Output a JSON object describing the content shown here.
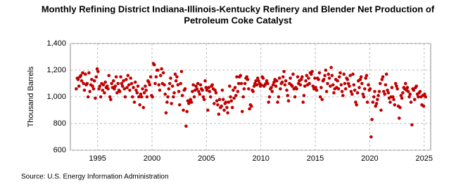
{
  "chart_data": {
    "type": "scatter",
    "title": [
      "Monthly Refining District Indiana-Illinois-Kentucky Refinery and Blender Net Production of",
      "Petroleum Coke Catalyst"
    ],
    "y_label": "Thousand Barrels",
    "source": "Source: U.S. Energy Information Administration",
    "xlim": [
      1992.5,
      2025.6
    ],
    "xticks": [
      1995,
      2000,
      2005,
      2010,
      2015,
      2020,
      2025
    ],
    "ylim": [
      600,
      1400
    ],
    "yticks": [
      600,
      800,
      {
        "value": 1000,
        "label": "1,000"
      },
      {
        "value": 1200,
        "label": "1,200"
      },
      {
        "value": 1400,
        "label": "1,400"
      }
    ],
    "grid": true,
    "color": "#c00000",
    "x": [
      1993.04,
      1993.13,
      1993.21,
      1993.29,
      1993.38,
      1993.46,
      1993.54,
      1993.63,
      1993.71,
      1993.79,
      1993.88,
      1993.96,
      1994.04,
      1994.13,
      1994.21,
      1994.29,
      1994.38,
      1994.46,
      1994.54,
      1994.63,
      1994.71,
      1994.79,
      1994.88,
      1994.96,
      1995.04,
      1995.13,
      1995.21,
      1995.29,
      1995.38,
      1995.46,
      1995.54,
      1995.63,
      1995.71,
      1995.79,
      1995.88,
      1995.96,
      1996.04,
      1996.13,
      1996.21,
      1996.29,
      1996.38,
      1996.46,
      1996.54,
      1996.63,
      1996.71,
      1996.79,
      1996.88,
      1996.96,
      1997.04,
      1997.13,
      1997.21,
      1997.29,
      1997.38,
      1997.46,
      1997.54,
      1997.63,
      1997.71,
      1997.79,
      1997.88,
      1997.96,
      1998.04,
      1998.13,
      1998.21,
      1998.29,
      1998.38,
      1998.46,
      1998.54,
      1998.63,
      1998.71,
      1998.79,
      1998.88,
      1998.96,
      1999.04,
      1999.13,
      1999.21,
      1999.29,
      1999.38,
      1999.46,
      1999.54,
      1999.63,
      1999.71,
      1999.79,
      1999.88,
      1999.96,
      2000.04,
      2000.13,
      2000.21,
      2000.29,
      2000.38,
      2000.46,
      2000.54,
      2000.63,
      2000.71,
      2000.79,
      2000.88,
      2000.96,
      2001.04,
      2001.13,
      2001.21,
      2001.29,
      2001.38,
      2001.46,
      2001.54,
      2001.63,
      2001.71,
      2001.79,
      2001.88,
      2001.96,
      2002.04,
      2002.13,
      2002.21,
      2002.29,
      2002.38,
      2002.46,
      2002.54,
      2002.63,
      2002.71,
      2002.79,
      2002.88,
      2002.96,
      2003.04,
      2003.13,
      2003.21,
      2003.29,
      2003.38,
      2003.46,
      2003.54,
      2003.63,
      2003.71,
      2003.79,
      2003.88,
      2003.96,
      2004.04,
      2004.13,
      2004.21,
      2004.29,
      2004.38,
      2004.46,
      2004.54,
      2004.63,
      2004.71,
      2004.79,
      2004.88,
      2004.96,
      2005.04,
      2005.13,
      2005.21,
      2005.29,
      2005.38,
      2005.46,
      2005.54,
      2005.63,
      2005.71,
      2005.79,
      2005.88,
      2005.96,
      2006.04,
      2006.13,
      2006.21,
      2006.29,
      2006.38,
      2006.46,
      2006.54,
      2006.63,
      2006.71,
      2006.79,
      2006.88,
      2006.96,
      2007.04,
      2007.13,
      2007.21,
      2007.29,
      2007.38,
      2007.46,
      2007.54,
      2007.63,
      2007.71,
      2007.79,
      2007.88,
      2007.96,
      2008.04,
      2008.13,
      2008.21,
      2008.29,
      2008.38,
      2008.46,
      2008.54,
      2008.63,
      2008.71,
      2008.79,
      2008.88,
      2008.96,
      2009.04,
      2009.13,
      2009.21,
      2009.29,
      2009.38,
      2009.46,
      2009.54,
      2009.63,
      2009.71,
      2009.79,
      2009.88,
      2009.96,
      2010.04,
      2010.13,
      2010.21,
      2010.29,
      2010.38,
      2010.46,
      2010.54,
      2010.63,
      2010.71,
      2010.79,
      2010.88,
      2010.96,
      2011.04,
      2011.13,
      2011.21,
      2011.29,
      2011.38,
      2011.46,
      2011.54,
      2011.63,
      2011.71,
      2011.79,
      2011.88,
      2011.96,
      2012.04,
      2012.13,
      2012.21,
      2012.29,
      2012.38,
      2012.46,
      2012.54,
      2012.63,
      2012.71,
      2012.79,
      2012.88,
      2012.96,
      2013.04,
      2013.13,
      2013.21,
      2013.29,
      2013.38,
      2013.46,
      2013.54,
      2013.63,
      2013.71,
      2013.79,
      2013.88,
      2013.96,
      2014.04,
      2014.13,
      2014.21,
      2014.29,
      2014.38,
      2014.46,
      2014.54,
      2014.63,
      2014.71,
      2014.79,
      2014.88,
      2014.96,
      2015.04,
      2015.13,
      2015.21,
      2015.29,
      2015.38,
      2015.46,
      2015.54,
      2015.63,
      2015.71,
      2015.79,
      2015.88,
      2015.96,
      2016.04,
      2016.13,
      2016.21,
      2016.29,
      2016.38,
      2016.46,
      2016.54,
      2016.63,
      2016.71,
      2016.79,
      2016.88,
      2016.96,
      2017.04,
      2017.13,
      2017.21,
      2017.29,
      2017.38,
      2017.46,
      2017.54,
      2017.63,
      2017.71,
      2017.79,
      2017.88,
      2017.96,
      2018.04,
      2018.13,
      2018.21,
      2018.29,
      2018.38,
      2018.46,
      2018.54,
      2018.63,
      2018.71,
      2018.79,
      2018.88,
      2018.96,
      2019.04,
      2019.13,
      2019.21,
      2019.29,
      2019.38,
      2019.46,
      2019.54,
      2019.63,
      2019.71,
      2019.79,
      2019.88,
      2019.96,
      2020.04,
      2020.13,
      2020.21,
      2020.29,
      2020.38,
      2020.46,
      2020.54,
      2020.63,
      2020.71,
      2020.79,
      2020.88,
      2020.96,
      2021.04,
      2021.13,
      2021.21,
      2021.29,
      2021.38,
      2021.46,
      2021.54,
      2021.63,
      2021.71,
      2021.79,
      2021.88,
      2021.96,
      2022.04,
      2022.13,
      2022.21,
      2022.29,
      2022.38,
      2022.46,
      2022.54,
      2022.63,
      2022.71,
      2022.79,
      2022.88,
      2022.96,
      2023.04,
      2023.13,
      2023.21,
      2023.29,
      2023.38,
      2023.46,
      2023.54,
      2023.63,
      2023.71,
      2023.79,
      2023.88,
      2023.96,
      2024.04,
      2024.13,
      2024.21,
      2024.29,
      2024.38,
      2024.46,
      2024.54,
      2024.63,
      2024.71,
      2024.79,
      2024.88,
      2024.96,
      2025.04,
      2025.13
    ],
    "values": [
      1060,
      1140,
      1130,
      1080,
      1150,
      1160,
      1120,
      1180,
      1100,
      1050,
      1170,
      1090,
      1100,
      1000,
      1180,
      1040,
      1090,
      1130,
      1080,
      1060,
      1120,
      990,
      1150,
      1210,
      1190,
      1060,
      1080,
      1000,
      1100,
      1050,
      1090,
      1030,
      1110,
      1070,
      1080,
      1060,
      1160,
      1000,
      980,
      1100,
      1070,
      1120,
      1060,
      1080,
      1150,
      1030,
      1100,
      1050,
      1040,
      1150,
      1100,
      1080,
      1120,
      1060,
      1000,
      1130,
      1070,
      1160,
      1090,
      1050,
      1140,
      1100,
      1000,
      1070,
      960,
      1110,
      1050,
      1030,
      1080,
      1000,
      940,
      1020,
      1000,
      1060,
      920,
      1030,
      1080,
      1050,
      1000,
      1120,
      1110,
      1090,
      1150,
      1010,
      1000,
      1250,
      1240,
      1100,
      1150,
      1200,
      1200,
      1090,
      1050,
      1160,
      1210,
      1100,
      1180,
      1090,
      1020,
      880,
      960,
      1000,
      1060,
      1100,
      1140,
      950,
      1080,
      1000,
      1030,
      1170,
      1120,
      1150,
      1090,
      1040,
      940,
      1100,
      1190,
      1010,
      900,
      1050,
      1060,
      780,
      890,
      970,
      950,
      960,
      980,
      960,
      1040,
      1090,
      1000,
      1050,
      1080,
      1060,
      1100,
      1040,
      1020,
      1090,
      1060,
      1050,
      1000,
      980,
      1120,
      1070,
      1050,
      900,
      1070,
      1040,
      1000,
      1080,
      1090,
      1060,
      950,
      1050,
      1030,
      970,
      940,
      870,
      980,
      920,
      930,
      1050,
      980,
      900,
      950,
      960,
      920,
      880,
      960,
      1080,
      1000,
      970,
      920,
      1050,
      990,
      1070,
      1010,
      1150,
      1040,
      1100,
      1150,
      1160,
      1100,
      890,
      1000,
      1060,
      1100,
      1140,
      1150,
      1130,
      1060,
      910,
      940,
      930,
      1050,
      1040,
      1080,
      1100,
      1120,
      1090,
      1140,
      1120,
      1100,
      1080,
      1090,
      1150,
      1140,
      1080,
      1090,
      1100,
      1120,
      1100,
      960,
      1000,
      1060,
      1070,
      1040,
      1090,
      1110,
      1130,
      1080,
      1120,
      960,
      1000,
      1140,
      1060,
      1100,
      1110,
      1150,
      1190,
      1090,
      1120,
      1050,
      1010,
      970,
      1100,
      1140,
      1090,
      1080,
      1170,
      1060,
      1000,
      1070,
      1060,
      1150,
      1100,
      1120,
      1090,
      1130,
      1150,
      960,
      1010,
      1080,
      1120,
      1160,
      1090,
      1140,
      1100,
      1180,
      1170,
      1190,
      1080,
      1060,
      1140,
      1070,
      1050,
      1140,
      1130,
      1180,
      1000,
      1070,
      980,
      1120,
      1130,
      1160,
      1200,
      1040,
      1100,
      1170,
      1140,
      1080,
      1220,
      1160,
      1090,
      1030,
      1060,
      1130,
      1070,
      1120,
      1060,
      1150,
      1180,
      1090,
      1040,
      1010,
      1170,
      1100,
      1060,
      1140,
      1130,
      1100,
      1080,
      1160,
      1040,
      1020,
      1170,
      1090,
      1050,
      960,
      940,
      1030,
      1120,
      1070,
      1130,
      1150,
      1100,
      1020,
      1000,
      1060,
      1140,
      1160,
      960,
      1090,
      1050,
      1060,
      700,
      830,
      960,
      1000,
      1040,
      930,
      950,
      980,
      1010,
      1040,
      1100,
      900,
      1130,
      1150,
      1040,
      1020,
      1090,
      1170,
      1050,
      1030,
      990,
      960,
      1000,
      1070,
      1000,
      980,
      940,
      1100,
      1080,
      1060,
      930,
      840,
      920,
      1010,
      990,
      1030,
      1070,
      1060,
      1100,
      1050,
      1070,
      1040,
      1000,
      1020,
      960,
      790,
      1060,
      1050,
      980,
      1070,
      1080,
      1020,
      1000,
      1030,
      1040,
      1000,
      940,
      1010,
      930,
      1020,
      1000
    ]
  }
}
